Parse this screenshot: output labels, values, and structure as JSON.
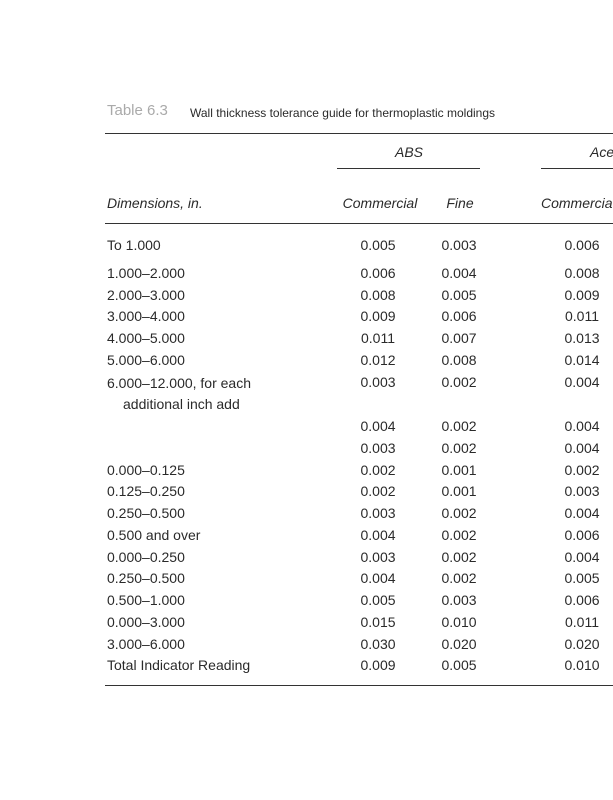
{
  "caption": {
    "label": "Table 6.3",
    "text": "Wall thickness tolerance guide for thermoplastic moldings"
  },
  "table": {
    "groups": [
      "ABS",
      "Ace"
    ],
    "headers": [
      "Dimensions, in.",
      "Commercial",
      "Fine",
      "Commercia"
    ],
    "rows": [
      [
        "To 1.000",
        "0.005",
        "0.003",
        "0.006"
      ],
      [
        "1.000–2.000",
        "0.006",
        "0.004",
        "0.008"
      ],
      [
        "2.000–3.000",
        "0.008",
        "0.005",
        "0.009"
      ],
      [
        "3.000–4.000",
        "0.009",
        "0.006",
        "0.011"
      ],
      [
        "4.000–5.000",
        "0.011",
        "0.007",
        "0.013"
      ],
      [
        "5.000–6.000",
        "0.012",
        "0.008",
        "0.014"
      ],
      [
        "6.000–12.000, for each additional inch add",
        "0.003",
        "0.002",
        "0.004"
      ],
      [
        null,
        "0.004",
        "0.002",
        "0.004"
      ],
      [
        null,
        "0.003",
        "0.002",
        "0.004"
      ],
      [
        "0.000–0.125",
        "0.002",
        "0.001",
        "0.002"
      ],
      [
        "0.125–0.250",
        "0.002",
        "0.001",
        "0.003"
      ],
      [
        "0.250–0.500",
        "0.003",
        "0.002",
        "0.004"
      ],
      [
        "0.500 and over",
        "0.004",
        "0.002",
        "0.006"
      ],
      [
        "0.000–0.250",
        "0.003",
        "0.002",
        "0.004"
      ],
      [
        "0.250–0.500",
        "0.004",
        "0.002",
        "0.005"
      ],
      [
        "0.500–1.000",
        "0.005",
        "0.003",
        "0.006"
      ],
      [
        "0.000–3.000",
        "0.015",
        "0.010",
        "0.011"
      ],
      [
        "3.000–6.000",
        "0.030",
        "0.020",
        "0.020"
      ],
      [
        "Total Indicator Reading",
        "0.009",
        "0.005",
        "0.010"
      ]
    ]
  }
}
